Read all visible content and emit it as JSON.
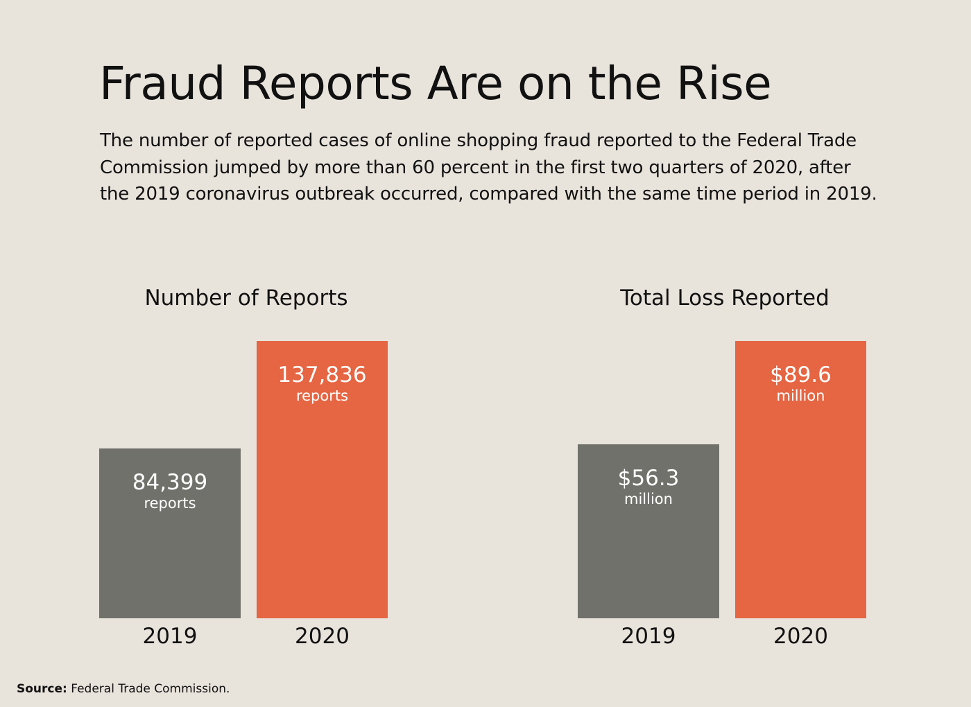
{
  "title": "Fraud Reports Are on the Rise",
  "subtitle": "The number of reported cases of online shopping fraud reported to the Federal Trade Commission jumped by more than 60 percent in the first two quarters of 2020, after the 2019 coronavirus outbreak occurred, compared with the same time period in 2019.",
  "source": {
    "label": "Source:",
    "text": "Federal Trade Commission."
  },
  "colors": {
    "background": "#e8e3db",
    "bar_2019": "#71716b",
    "bar_2020": "#e66542",
    "text": "#111111",
    "bar_text": "#ffffff"
  },
  "chart_data": [
    {
      "type": "bar",
      "title": "Number of Reports",
      "categories": [
        "2019",
        "2020"
      ],
      "values": [
        84399,
        137836
      ],
      "data_labels": [
        "84,399",
        "137,836"
      ],
      "unit_labels": [
        "reports",
        "reports"
      ],
      "xlabel": "",
      "ylabel": "",
      "ylim": [
        0,
        137836
      ],
      "grid": false
    },
    {
      "type": "bar",
      "title": "Total Loss Reported",
      "categories": [
        "2019",
        "2020"
      ],
      "values": [
        56.3,
        89.6
      ],
      "data_labels": [
        "$56.3",
        "$89.6"
      ],
      "unit_labels": [
        "million",
        "million"
      ],
      "xlabel": "",
      "ylabel": "",
      "ylim": [
        0,
        89.6
      ],
      "grid": false
    }
  ]
}
